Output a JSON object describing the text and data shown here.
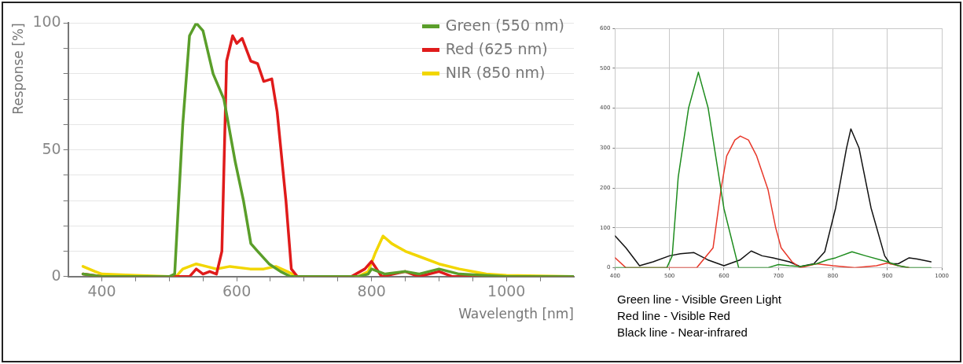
{
  "chart_data": [
    {
      "type": "line",
      "xlabel": "Wavelength [nm]",
      "ylabel": "Response [%]",
      "xlim": [
        350,
        1100
      ],
      "ylim": [
        0,
        100
      ],
      "xticks": [
        400,
        {
          "value": 450,
          "label": null
        },
        {
          "value": 500,
          "label": null
        },
        {
          "value": 550,
          "label": null
        },
        600,
        {
          "value": 650,
          "label": null
        },
        {
          "value": 700,
          "label": null
        },
        {
          "value": 750,
          "label": null
        },
        800,
        {
          "value": 850,
          "label": null
        },
        {
          "value": 900,
          "label": null
        },
        {
          "value": 950,
          "label": null
        },
        1000,
        {
          "value": 1050,
          "label": null
        }
      ],
      "yticks": [
        0,
        {
          "value": 10,
          "label": null
        },
        {
          "value": 20,
          "label": null
        },
        {
          "value": 30,
          "label": null
        },
        {
          "value": 40,
          "label": null
        },
        50,
        {
          "value": 60,
          "label": null
        },
        {
          "value": 70,
          "label": null
        },
        {
          "value": 80,
          "label": null
        },
        {
          "value": 90,
          "label": null
        },
        100
      ],
      "grid": "y",
      "legend": "top right",
      "marker": "none",
      "series": [
        {
          "name": "Green (550 nm)",
          "color": "#5a9e2a",
          "x": [
            372,
            400,
            450,
            500,
            508,
            520,
            530,
            540,
            550,
            565,
            581,
            598,
            610,
            621,
            631,
            648,
            665,
            680,
            700,
            780,
            795,
            800,
            820,
            850,
            870,
            900,
            930,
            1000,
            1100
          ],
          "values": [
            1,
            0,
            0,
            0,
            1,
            60,
            95,
            100,
            97,
            80,
            70,
            45,
            30,
            13,
            10,
            5,
            2,
            0,
            0,
            0,
            1,
            3,
            1,
            2,
            1,
            3,
            1,
            0,
            0
          ]
        },
        {
          "name": "Red (625 nm)",
          "color": "#e01b1b",
          "x": [
            372,
            400,
            500,
            530,
            540,
            550,
            560,
            570,
            578,
            585,
            594,
            600,
            608,
            621,
            631,
            640,
            652,
            660,
            673,
            681,
            690,
            770,
            790,
            800,
            815,
            850,
            870,
            900,
            920,
            1000,
            1100
          ],
          "values": [
            1,
            0,
            0,
            0,
            3,
            1,
            2,
            1,
            10,
            85,
            95,
            92,
            94,
            85,
            84,
            77,
            78,
            65,
            30,
            3,
            0,
            0,
            3,
            6,
            0,
            2,
            0,
            2,
            0,
            0,
            0
          ]
        },
        {
          "name": "NIR (850 nm)",
          "color": "#f2d600",
          "x": [
            372,
            390,
            400,
            450,
            500,
            510,
            520,
            540,
            570,
            590,
            620,
            640,
            658,
            675,
            690,
            780,
            795,
            805,
            817,
            830,
            850,
            870,
            900,
            930,
            970,
            1000,
            1100
          ],
          "values": [
            4,
            2,
            1,
            0.5,
            0,
            0,
            3,
            5,
            3,
            4,
            3,
            3,
            4,
            2,
            0,
            0,
            2,
            9,
            16,
            13,
            10,
            8,
            5,
            3,
            1,
            0.5,
            0
          ]
        }
      ]
    },
    {
      "type": "line",
      "xlim": [
        400,
        1000
      ],
      "ylim": [
        0,
        600
      ],
      "xticks": [
        400,
        500,
        600,
        700,
        800,
        900,
        1000
      ],
      "yticks": [
        0,
        100,
        200,
        300,
        400,
        500,
        600
      ],
      "grid": true,
      "legend": false,
      "marker": "none",
      "annotations": [
        "Green line - Visible Green Light",
        "Red line - Visible Red",
        "Black line - Near-infrared"
      ],
      "series": [
        {
          "color": "#1e8c1e",
          "x": [
            400,
            495,
            505,
            516,
            535,
            553,
            571,
            600,
            627,
            650,
            680,
            700,
            720,
            740,
            770,
            790,
            805,
            835,
            860,
            900,
            920,
            940,
            980
          ],
          "values": [
            0,
            0,
            30,
            227,
            400,
            490,
            400,
            148,
            0,
            0,
            0,
            8,
            5,
            3,
            10,
            20,
            25,
            40,
            30,
            15,
            5,
            0,
            0
          ]
        },
        {
          "color": "#e8382a",
          "x": [
            400,
            420,
            500,
            550,
            580,
            595,
            605,
            620,
            630,
            645,
            660,
            681,
            695,
            705,
            725,
            740,
            770,
            800,
            840,
            880,
            900,
            920,
            940
          ],
          "values": [
            25,
            0,
            0,
            0,
            50,
            200,
            280,
            320,
            330,
            320,
            280,
            195,
            100,
            50,
            15,
            0,
            10,
            5,
            0,
            5,
            12,
            5,
            0
          ]
        },
        {
          "color": "#111111",
          "x": [
            400,
            420,
            445,
            470,
            500,
            520,
            545,
            570,
            600,
            630,
            650,
            670,
            690,
            720,
            740,
            765,
            785,
            805,
            825,
            833,
            848,
            870,
            895,
            905,
            920,
            940,
            955,
            980
          ],
          "values": [
            80,
            50,
            5,
            15,
            30,
            35,
            38,
            20,
            5,
            20,
            42,
            30,
            25,
            15,
            3,
            10,
            40,
            150,
            300,
            348,
            300,
            150,
            30,
            10,
            10,
            25,
            22,
            15
          ]
        }
      ]
    }
  ]
}
